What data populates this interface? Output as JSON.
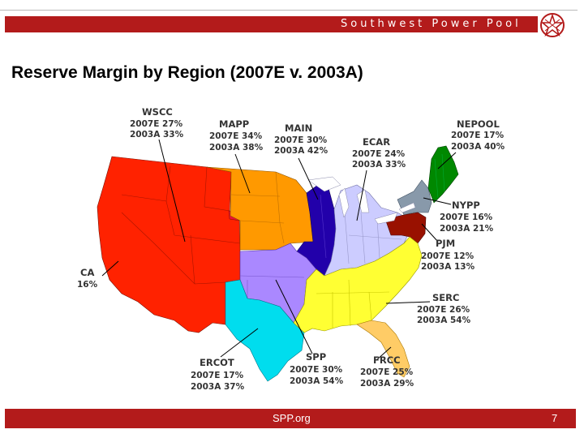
{
  "header": {
    "org_name": "Southwest Power Pool",
    "logo_icon": "spp-star-logo-icon",
    "accent_color": "#b31b1b"
  },
  "title": "Reserve Margin by Region (2007E v. 2003A)",
  "regions": [
    {
      "name": "WSCC",
      "lines": [
        "2007E 27%",
        "2003A 33%"
      ],
      "color": "#ff2200"
    },
    {
      "name": "MAPP",
      "lines": [
        "2007E 34%",
        "2003A 38%"
      ],
      "color": "#ff9900"
    },
    {
      "name": "MAIN",
      "lines": [
        "2007E 30%",
        "2003A 42%"
      ],
      "color": "#2200aa"
    },
    {
      "name": "ECAR",
      "lines": [
        "2007E 24%",
        "2003A 33%"
      ],
      "color": "#ccccff"
    },
    {
      "name": "NEPOOL",
      "lines": [
        "2007E 17%",
        "2003A 40%"
      ],
      "color": "#008800"
    },
    {
      "name": "NYPP",
      "lines": [
        "2007E 16%",
        "2003A 21%"
      ],
      "color": "#8899aa"
    },
    {
      "name": "PJM",
      "lines": [
        "2007E 12%",
        "2003A 13%"
      ],
      "color": "#991100"
    },
    {
      "name": "CA",
      "lines": [
        "16%"
      ],
      "color": "#ff2200"
    },
    {
      "name": "SERC",
      "lines": [
        "2007E 26%",
        "2003A 54%"
      ],
      "color": "#ffff33"
    },
    {
      "name": "ERCOT",
      "lines": [
        "2007E 17%",
        "2003A 37%"
      ],
      "color": "#00ddee"
    },
    {
      "name": "SPP",
      "lines": [
        "2007E 30%",
        "2003A 54%"
      ],
      "color": "#aa88ff"
    },
    {
      "name": "FRCC",
      "lines": [
        "2007E 25%",
        "2003A 29%"
      ],
      "color": "#ffcc66"
    }
  ],
  "footer": {
    "site": "SPP.org",
    "page_number": "7"
  }
}
